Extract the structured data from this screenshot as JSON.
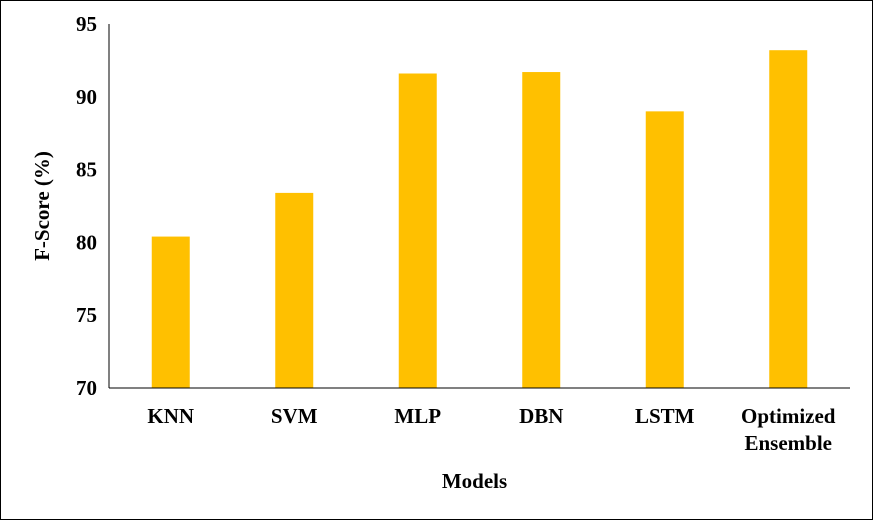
{
  "chart_data": {
    "type": "bar",
    "title": "",
    "xlabel": "Models",
    "ylabel": "F-Score (%)",
    "categories": [
      [
        "KNN"
      ],
      [
        "SVM"
      ],
      [
        "MLP"
      ],
      [
        "DBN"
      ],
      [
        "LSTM"
      ],
      [
        "Optimized",
        "Ensemble"
      ]
    ],
    "values": [
      80.4,
      83.4,
      91.6,
      91.7,
      89.0,
      93.2
    ],
    "ylim": [
      70,
      95
    ],
    "yticks": [
      70,
      75,
      80,
      85,
      90,
      95
    ],
    "grid": false,
    "legend": "none",
    "bar_color": "#FFC000",
    "axis_color": "#000000"
  }
}
